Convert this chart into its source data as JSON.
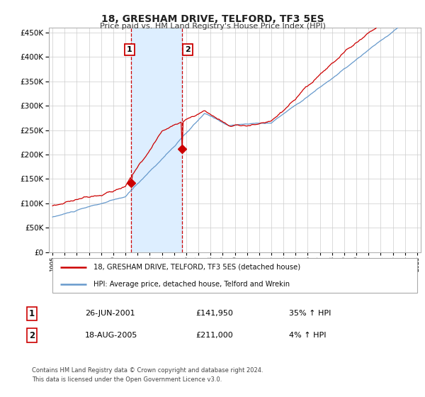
{
  "title": "18, GRESHAM DRIVE, TELFORD, TF3 5ES",
  "subtitle": "Price paid vs. HM Land Registry's House Price Index (HPI)",
  "legend_line1": "18, GRESHAM DRIVE, TELFORD, TF3 5ES (detached house)",
  "legend_line2": "HPI: Average price, detached house, Telford and Wrekin",
  "footnote": "Contains HM Land Registry data © Crown copyright and database right 2024.\nThis data is licensed under the Open Government Licence v3.0.",
  "transaction1_date": "26-JUN-2001",
  "transaction1_price": 141950,
  "transaction1_hpi": "35% ↑ HPI",
  "transaction2_date": "18-AUG-2005",
  "transaction2_price": 211000,
  "transaction2_hpi": "4% ↑ HPI",
  "red_line_color": "#cc0000",
  "blue_line_color": "#6699cc",
  "shade_color": "#ddeeff",
  "dashed_line_color": "#cc0000",
  "grid_color": "#cccccc",
  "bg_color": "#ffffff",
  "ylim": [
    0,
    460000
  ],
  "yticks": [
    0,
    50000,
    100000,
    150000,
    200000,
    250000,
    300000,
    350000,
    400000,
    450000
  ],
  "x_start_year": 1995,
  "x_end_year": 2025,
  "transaction1_x": 2001.49,
  "transaction2_x": 2005.63
}
